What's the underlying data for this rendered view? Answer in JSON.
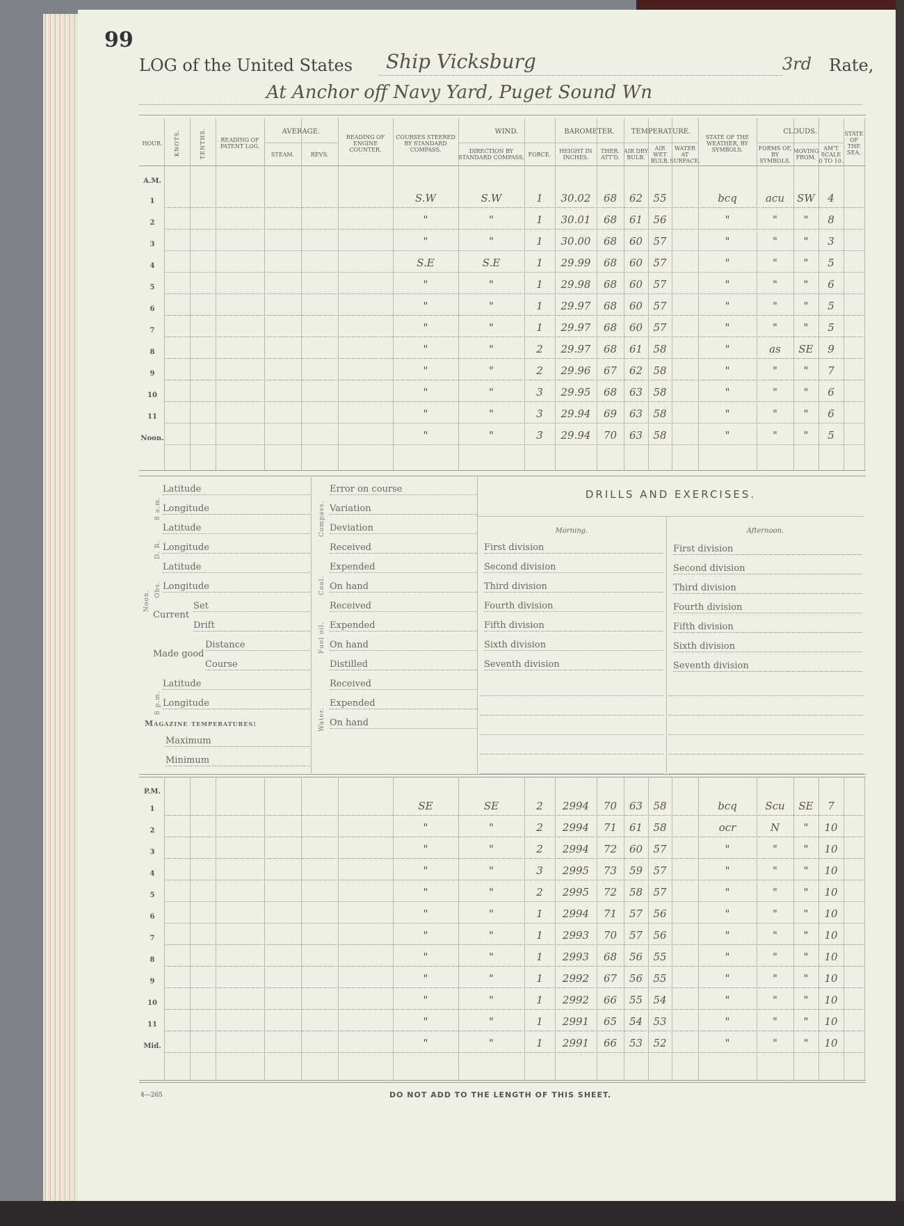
{
  "page_number": "99",
  "header": {
    "prefix": "LOG of the United States",
    "ship": "Ship Vicksburg",
    "rate_value": "3rd",
    "rate_label": "Rate,",
    "location": "At Anchor off Navy Yard, Puget Sound Wn"
  },
  "columns": [
    "Hour.",
    "Knots.",
    "Tenths.",
    "Reading of Patent Log.",
    "Steam.",
    "Revs.",
    "Reading of Engine Counter.",
    "Courses steered by Standard Compass.",
    "Direction by Standard Compass.",
    "Force.",
    "Height in Inches.",
    "Ther. Att'd.",
    "Air Dry Bulb.",
    "Air Wet Bulb.",
    "Water at Surface.",
    "State of the Weather, by Symbols.",
    "Forms of, by Symbols.",
    "Moving From.",
    "Am't Scale 0 to 10.",
    "State of the Sea."
  ],
  "column_groups": {
    "average": "Average.",
    "wind": "Wind.",
    "barometer": "Barometer.",
    "temperature": "Temperature.",
    "clouds": "Clouds."
  },
  "am": {
    "label": "A.M.",
    "rows": [
      {
        "hour": "1",
        "course": "S.W",
        "wind_dir": "S.W",
        "force": "1",
        "height": "30.02",
        "ther": "68",
        "dry": "62",
        "wet": "55",
        "weather": "bcq",
        "cloud_form": "acu",
        "cloud_from": "SW",
        "cloud_amt": "4"
      },
      {
        "hour": "2",
        "course": "\"",
        "wind_dir": "\"",
        "force": "1",
        "height": "30.01",
        "ther": "68",
        "dry": "61",
        "wet": "56",
        "weather": "\"",
        "cloud_form": "\"",
        "cloud_from": "\"",
        "cloud_amt": "8"
      },
      {
        "hour": "3",
        "course": "\"",
        "wind_dir": "\"",
        "force": "1",
        "height": "30.00",
        "ther": "68",
        "dry": "60",
        "wet": "57",
        "weather": "\"",
        "cloud_form": "\"",
        "cloud_from": "\"",
        "cloud_amt": "3"
      },
      {
        "hour": "4",
        "course": "S.E",
        "wind_dir": "S.E",
        "force": "1",
        "height": "29.99",
        "ther": "68",
        "dry": "60",
        "wet": "57",
        "weather": "\"",
        "cloud_form": "\"",
        "cloud_from": "\"",
        "cloud_amt": "5"
      },
      {
        "hour": "5",
        "course": "\"",
        "wind_dir": "\"",
        "force": "1",
        "height": "29.98",
        "ther": "68",
        "dry": "60",
        "wet": "57",
        "weather": "\"",
        "cloud_form": "\"",
        "cloud_from": "\"",
        "cloud_amt": "6"
      },
      {
        "hour": "6",
        "course": "\"",
        "wind_dir": "\"",
        "force": "1",
        "height": "29.97",
        "ther": "68",
        "dry": "60",
        "wet": "57",
        "weather": "\"",
        "cloud_form": "\"",
        "cloud_from": "\"",
        "cloud_amt": "5"
      },
      {
        "hour": "7",
        "course": "\"",
        "wind_dir": "\"",
        "force": "1",
        "height": "29.97",
        "ther": "68",
        "dry": "60",
        "wet": "57",
        "weather": "\"",
        "cloud_form": "\"",
        "cloud_from": "\"",
        "cloud_amt": "5"
      },
      {
        "hour": "8",
        "course": "\"",
        "wind_dir": "\"",
        "force": "2",
        "height": "29.97",
        "ther": "68",
        "dry": "61",
        "wet": "58",
        "weather": "\"",
        "cloud_form": "as",
        "cloud_from": "SE",
        "cloud_amt": "9"
      },
      {
        "hour": "9",
        "course": "\"",
        "wind_dir": "\"",
        "force": "2",
        "height": "29.96",
        "ther": "67",
        "dry": "62",
        "wet": "58",
        "weather": "\"",
        "cloud_form": "\"",
        "cloud_from": "\"",
        "cloud_amt": "7"
      },
      {
        "hour": "10",
        "course": "\"",
        "wind_dir": "\"",
        "force": "3",
        "height": "29.95",
        "ther": "68",
        "dry": "63",
        "wet": "58",
        "weather": "\"",
        "cloud_form": "\"",
        "cloud_from": "\"",
        "cloud_amt": "6"
      },
      {
        "hour": "11",
        "course": "\"",
        "wind_dir": "\"",
        "force": "3",
        "height": "29.94",
        "ther": "69",
        "dry": "63",
        "wet": "58",
        "weather": "\"",
        "cloud_form": "\"",
        "cloud_from": "\"",
        "cloud_amt": "6"
      },
      {
        "hour": "Noon.",
        "course": "\"",
        "wind_dir": "\"",
        "force": "3",
        "height": "29.94",
        "ther": "70",
        "dry": "63",
        "wet": "58",
        "weather": "\"",
        "cloud_form": "\"",
        "cloud_from": "\"",
        "cloud_amt": "5"
      }
    ]
  },
  "pm": {
    "label": "P.M.",
    "rows": [
      {
        "hour": "1",
        "course": "SE",
        "wind_dir": "SE",
        "force": "2",
        "height": "2994",
        "ther": "70",
        "dry": "63",
        "wet": "58",
        "weather": "bcq",
        "cloud_form": "Scu",
        "cloud_from": "SE",
        "cloud_amt": "7"
      },
      {
        "hour": "2",
        "course": "\"",
        "wind_dir": "\"",
        "force": "2",
        "height": "2994",
        "ther": "71",
        "dry": "61",
        "wet": "58",
        "weather": "ocr",
        "cloud_form": "N",
        "cloud_from": "\"",
        "cloud_amt": "10"
      },
      {
        "hour": "3",
        "course": "\"",
        "wind_dir": "\"",
        "force": "2",
        "height": "2994",
        "ther": "72",
        "dry": "60",
        "wet": "57",
        "weather": "\"",
        "cloud_form": "\"",
        "cloud_from": "\"",
        "cloud_amt": "10"
      },
      {
        "hour": "4",
        "course": "\"",
        "wind_dir": "\"",
        "force": "3",
        "height": "2995",
        "ther": "73",
        "dry": "59",
        "wet": "57",
        "weather": "\"",
        "cloud_form": "\"",
        "cloud_from": "\"",
        "cloud_amt": "10"
      },
      {
        "hour": "5",
        "course": "\"",
        "wind_dir": "\"",
        "force": "2",
        "height": "2995",
        "ther": "72",
        "dry": "58",
        "wet": "57",
        "weather": "\"",
        "cloud_form": "\"",
        "cloud_from": "\"",
        "cloud_amt": "10"
      },
      {
        "hour": "6",
        "course": "\"",
        "wind_dir": "\"",
        "force": "1",
        "height": "2994",
        "ther": "71",
        "dry": "57",
        "wet": "56",
        "weather": "\"",
        "cloud_form": "\"",
        "cloud_from": "\"",
        "cloud_amt": "10"
      },
      {
        "hour": "7",
        "course": "\"",
        "wind_dir": "\"",
        "force": "1",
        "height": "2993",
        "ther": "70",
        "dry": "57",
        "wet": "56",
        "weather": "\"",
        "cloud_form": "\"",
        "cloud_from": "\"",
        "cloud_amt": "10"
      },
      {
        "hour": "8",
        "course": "\"",
        "wind_dir": "\"",
        "force": "1",
        "height": "2993",
        "ther": "68",
        "dry": "56",
        "wet": "55",
        "weather": "\"",
        "cloud_form": "\"",
        "cloud_from": "\"",
        "cloud_amt": "10"
      },
      {
        "hour": "9",
        "course": "\"",
        "wind_dir": "\"",
        "force": "1",
        "height": "2992",
        "ther": "67",
        "dry": "56",
        "wet": "55",
        "weather": "\"",
        "cloud_form": "\"",
        "cloud_from": "\"",
        "cloud_amt": "10"
      },
      {
        "hour": "10",
        "course": "\"",
        "wind_dir": "\"",
        "force": "1",
        "height": "2992",
        "ther": "66",
        "dry": "55",
        "wet": "54",
        "weather": "\"",
        "cloud_form": "\"",
        "cloud_from": "\"",
        "cloud_amt": "10"
      },
      {
        "hour": "11",
        "course": "\"",
        "wind_dir": "\"",
        "force": "1",
        "height": "2991",
        "ther": "65",
        "dry": "54",
        "wet": "53",
        "weather": "\"",
        "cloud_form": "\"",
        "cloud_from": "\"",
        "cloud_amt": "10"
      },
      {
        "hour": "Mid.",
        "course": "\"",
        "wind_dir": "\"",
        "force": "1",
        "height": "2991",
        "ther": "66",
        "dry": "53",
        "wet": "52",
        "weather": "\"",
        "cloud_form": "\"",
        "cloud_from": "\"",
        "cloud_amt": "10"
      }
    ]
  },
  "position": {
    "sections": [
      {
        "label": "8 a.m.",
        "items": [
          "Latitude",
          "Longitude"
        ]
      },
      {
        "label": "D. R.",
        "items": [
          "Latitude",
          "Longitude"
        ]
      },
      {
        "label": "Obs.",
        "items": [
          "Latitude",
          "Longitude"
        ]
      },
      {
        "label": "Current",
        "items": [
          "Set",
          "Drift"
        ]
      },
      {
        "label": "Made good",
        "items": [
          "Distance",
          "Course"
        ]
      },
      {
        "label": "8 p.m.",
        "items": [
          "Latitude",
          "Longitude"
        ]
      }
    ],
    "noon_label": "Noon.",
    "magazine_title": "Magazine temperatures:",
    "magazine_items": [
      "Maximum",
      "Minimum"
    ]
  },
  "supplies": [
    {
      "label": "Compass.",
      "items": [
        "Error on course",
        "Variation",
        "Deviation"
      ]
    },
    {
      "label": "Coal.",
      "items": [
        "Received",
        "Expended",
        "On hand"
      ]
    },
    {
      "label": "Fuel oil.",
      "items": [
        "Received",
        "Expended",
        "On hand"
      ]
    },
    {
      "label": "Water.",
      "items": [
        "Distilled",
        "Received",
        "Expended",
        "On hand"
      ]
    }
  ],
  "drills": {
    "title": "DRILLS AND EXERCISES.",
    "morning_label": "Morning.",
    "afternoon_label": "Afternoon.",
    "divisions": [
      "First division",
      "Second division",
      "Third division",
      "Fourth division",
      "Fifth division",
      "Sixth division",
      "Seventh division"
    ]
  },
  "footer": {
    "form_number": "4—265",
    "notice": "DO NOT ADD TO THE LENGTH OF THIS SHEET."
  }
}
